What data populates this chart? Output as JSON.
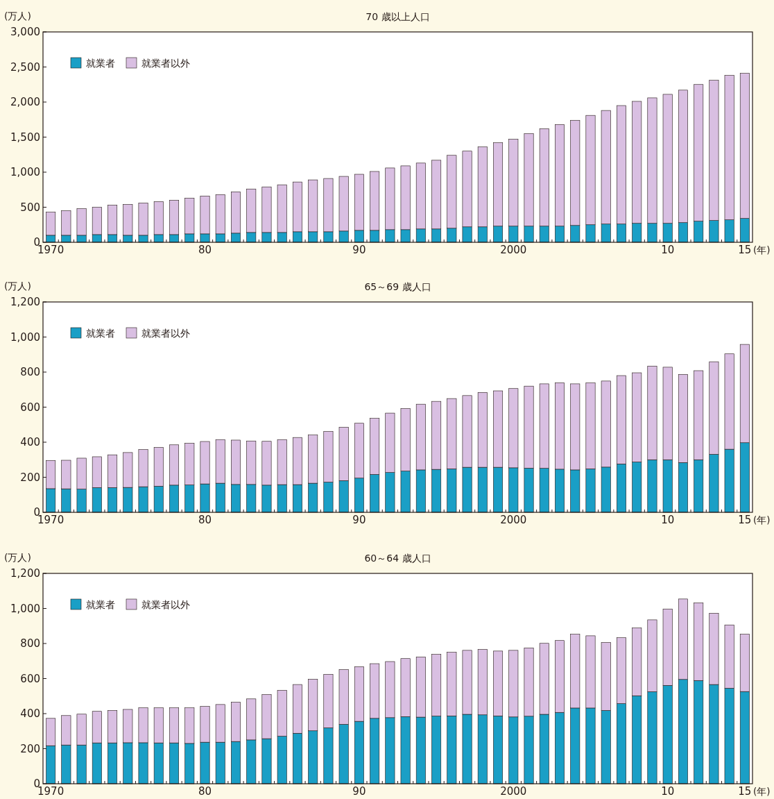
{
  "chart_data": [
    {
      "type": "bar",
      "stacked": true,
      "title": "70 歳以上人口",
      "ylabel": "(万人)",
      "xlabel": "(年)",
      "legend": "top left",
      "categories": [
        "1970",
        null,
        null,
        null,
        null,
        null,
        null,
        null,
        null,
        null,
        "80",
        null,
        null,
        null,
        null,
        null,
        null,
        null,
        null,
        null,
        "90",
        null,
        null,
        null,
        null,
        null,
        null,
        null,
        null,
        null,
        "2000",
        null,
        null,
        null,
        null,
        null,
        null,
        null,
        null,
        null,
        "10",
        null,
        null,
        null,
        null,
        "15"
      ],
      "ylim": [
        0,
        3000
      ],
      "yticks": [
        0,
        {
          "value": 500,
          "label": "500"
        },
        {
          "value": 1000,
          "label": "1,000"
        },
        {
          "value": 1500,
          "label": "1,500"
        },
        {
          "value": 2000,
          "label": "2,000"
        },
        {
          "value": 2500,
          "label": "2,500"
        },
        {
          "value": 3000,
          "label": "3,000"
        }
      ],
      "series": [
        {
          "name": "就業者",
          "color": "#1a9fc6",
          "values": [
            100,
            100,
            100,
            110,
            110,
            100,
            100,
            110,
            110,
            120,
            120,
            120,
            130,
            140,
            140,
            140,
            150,
            150,
            150,
            160,
            170,
            170,
            180,
            180,
            190,
            190,
            200,
            220,
            220,
            230,
            230,
            230,
            230,
            230,
            240,
            250,
            260,
            260,
            270,
            270,
            270,
            280,
            300,
            310,
            320,
            340
          ]
        },
        {
          "name": "就業者以外",
          "color": "#d9bfe2",
          "values": [
            330,
            350,
            380,
            390,
            420,
            440,
            460,
            470,
            490,
            510,
            540,
            560,
            590,
            620,
            650,
            680,
            710,
            740,
            760,
            780,
            800,
            840,
            880,
            910,
            940,
            980,
            1040,
            1080,
            1140,
            1190,
            1240,
            1320,
            1390,
            1450,
            1500,
            1560,
            1620,
            1690,
            1740,
            1790,
            1840,
            1890,
            1950,
            2000,
            2060,
            2070
          ]
        }
      ]
    },
    {
      "type": "bar",
      "stacked": true,
      "title": "65～69 歳人口",
      "ylabel": "(万人)",
      "xlabel": "(年)",
      "legend": "top left",
      "categories": [
        "1970",
        null,
        null,
        null,
        null,
        null,
        null,
        null,
        null,
        null,
        "80",
        null,
        null,
        null,
        null,
        null,
        null,
        null,
        null,
        null,
        "90",
        null,
        null,
        null,
        null,
        null,
        null,
        null,
        null,
        null,
        "2000",
        null,
        null,
        null,
        null,
        null,
        null,
        null,
        null,
        null,
        "10",
        null,
        null,
        null,
        null,
        "15"
      ],
      "ylim": [
        0,
        1200
      ],
      "yticks": [
        0,
        200,
        400,
        600,
        800,
        {
          "value": 1000,
          "label": "1,000"
        },
        {
          "value": 1200,
          "label": "1,200"
        }
      ],
      "series": [
        {
          "name": "就業者",
          "color": "#1a9fc6",
          "values": [
            135,
            134,
            132,
            141,
            141,
            142,
            146,
            149,
            155,
            156,
            162,
            166,
            159,
            159,
            155,
            158,
            158,
            166,
            172,
            181,
            195,
            216,
            227,
            235,
            242,
            245,
            248,
            257,
            257,
            257,
            254,
            252,
            251,
            246,
            242,
            248,
            258,
            276,
            287,
            300,
            300,
            284,
            300,
            331,
            360,
            397
          ]
        },
        {
          "name": "就業者以外",
          "color": "#d9bfe2",
          "values": [
            161,
            163,
            177,
            176,
            187,
            199,
            212,
            221,
            230,
            238,
            242,
            249,
            253,
            248,
            250,
            257,
            269,
            275,
            289,
            304,
            313,
            320,
            339,
            357,
            375,
            388,
            401,
            409,
            427,
            436,
            452,
            468,
            482,
            493,
            491,
            490,
            491,
            504,
            509,
            534,
            528,
            503,
            508,
            528,
            544,
            561
          ]
        }
      ]
    },
    {
      "type": "bar",
      "stacked": true,
      "title": "60～64 歳人口",
      "ylabel": "(万人)",
      "xlabel": "(年)",
      "legend": "top left",
      "categories": [
        "1970",
        null,
        null,
        null,
        null,
        null,
        null,
        null,
        null,
        null,
        "80",
        null,
        null,
        null,
        null,
        null,
        null,
        null,
        null,
        null,
        "90",
        null,
        null,
        null,
        null,
        null,
        null,
        null,
        null,
        null,
        "2000",
        null,
        null,
        null,
        null,
        null,
        null,
        null,
        null,
        null,
        "10",
        null,
        null,
        null,
        null,
        "15"
      ],
      "ylim": [
        0,
        1200
      ],
      "yticks": [
        0,
        200,
        400,
        600,
        800,
        {
          "value": 1000,
          "label": "1,000"
        },
        {
          "value": 1200,
          "label": "1,200"
        }
      ],
      "series": [
        {
          "name": "就業者",
          "color": "#1a9fc6",
          "values": [
            217,
            221,
            221,
            233,
            233,
            234,
            234,
            233,
            233,
            230,
            237,
            237,
            241,
            250,
            257,
            271,
            288,
            302,
            319,
            339,
            356,
            373,
            377,
            383,
            380,
            386,
            387,
            396,
            393,
            387,
            381,
            385,
            396,
            407,
            432,
            432,
            418,
            457,
            502,
            525,
            561,
            595,
            589,
            566,
            545,
            526
          ]
        },
        {
          "name": "就業者以外",
          "color": "#d9bfe2",
          "values": [
            156,
            168,
            176,
            180,
            185,
            190,
            199,
            200,
            200,
            203,
            204,
            215,
            224,
            234,
            252,
            262,
            278,
            294,
            305,
            312,
            312,
            312,
            320,
            331,
            343,
            352,
            363,
            365,
            373,
            370,
            380,
            390,
            405,
            410,
            421,
            412,
            388,
            376,
            387,
            410,
            436,
            459,
            443,
            407,
            361,
            327
          ]
        }
      ]
    }
  ]
}
